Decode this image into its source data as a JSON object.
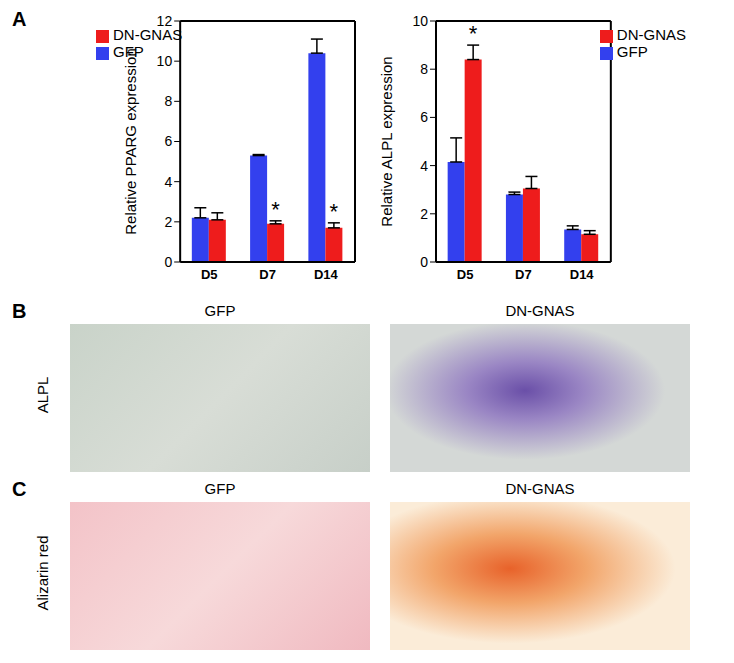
{
  "panel_labels": [
    "A",
    "B",
    "C"
  ],
  "chart_data": [
    {
      "type": "bar",
      "categories": [
        "D5",
        "D7",
        "D14"
      ],
      "y_label": "Relative PPARG expression",
      "ylim": [
        0,
        12
      ],
      "yticks": [
        0,
        2,
        4,
        6,
        8,
        10,
        12
      ],
      "grid": false,
      "legend": "upper left",
      "series": [
        {
          "name": "GFP",
          "color": "#3340ee",
          "values": [
            2.2,
            5.3,
            10.4
          ],
          "errors": [
            0.5,
            0.05,
            0.7
          ]
        },
        {
          "name": "DN-GNAS",
          "color": "#ee1c1c",
          "values": [
            2.1,
            1.9,
            1.7
          ],
          "errors": [
            0.35,
            0.15,
            0.25
          ]
        }
      ],
      "annotations": [
        {
          "series": "DN-GNAS",
          "category": "D7",
          "text": "*"
        },
        {
          "series": "DN-GNAS",
          "category": "D14",
          "text": "*"
        }
      ]
    },
    {
      "type": "bar",
      "categories": [
        "D5",
        "D7",
        "D14"
      ],
      "y_label": "Relative ALPL expression",
      "ylim": [
        0,
        10
      ],
      "yticks": [
        0,
        2,
        4,
        6,
        8,
        10
      ],
      "grid": false,
      "legend": "upper right",
      "series": [
        {
          "name": "GFP",
          "color": "#3340ee",
          "values": [
            4.15,
            2.8,
            1.35
          ],
          "errors": [
            1.0,
            0.1,
            0.15
          ]
        },
        {
          "name": "DN-GNAS",
          "color": "#ee1c1c",
          "values": [
            8.4,
            3.05,
            1.15
          ],
          "errors": [
            0.6,
            0.5,
            0.15
          ]
        }
      ],
      "annotations": [
        {
          "series": "DN-GNAS",
          "category": "D5",
          "text": "*"
        }
      ]
    }
  ],
  "images": [
    {
      "row_label": "ALPL",
      "columns": [
        "GFP",
        "DN-GNAS"
      ]
    },
    {
      "row_label": "Alizarin red",
      "columns": [
        "GFP",
        "DN-GNAS"
      ]
    }
  ]
}
